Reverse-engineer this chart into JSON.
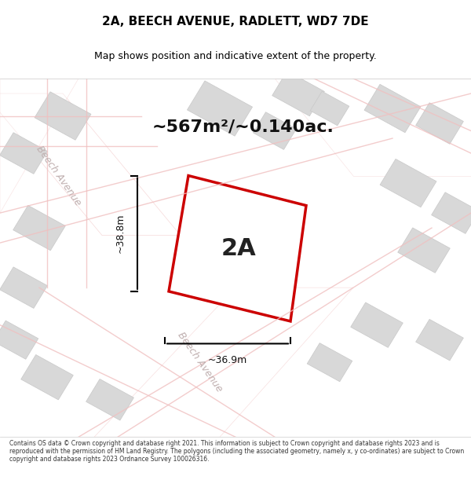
{
  "title": "2A, BEECH AVENUE, RADLETT, WD7 7DE",
  "subtitle": "Map shows position and indicative extent of the property.",
  "area_label": "~567m²/~0.140ac.",
  "plot_label": "2A",
  "dim_h": "~38.8m",
  "dim_w": "~36.9m",
  "footer": "Contains OS data © Crown copyright and database right 2021. This information is subject to Crown copyright and database rights 2023 and is reproduced with the permission of HM Land Registry. The polygons (including the associated geometry, namely x, y co-ordinates) are subject to Crown copyright and database rights 2023 Ordnance Survey 100026316.",
  "bg_color": "#f5f5f5",
  "map_bg": "#f0efef",
  "road_color": "#f0c0c0",
  "building_color": "#d8d8d8",
  "building_edge": "#c8c8c8",
  "plot_color": "#ffffff",
  "plot_edge": "#cc0000",
  "road_text_color": "#c0b0b0",
  "title_color": "#000000",
  "label_color": "#000000"
}
